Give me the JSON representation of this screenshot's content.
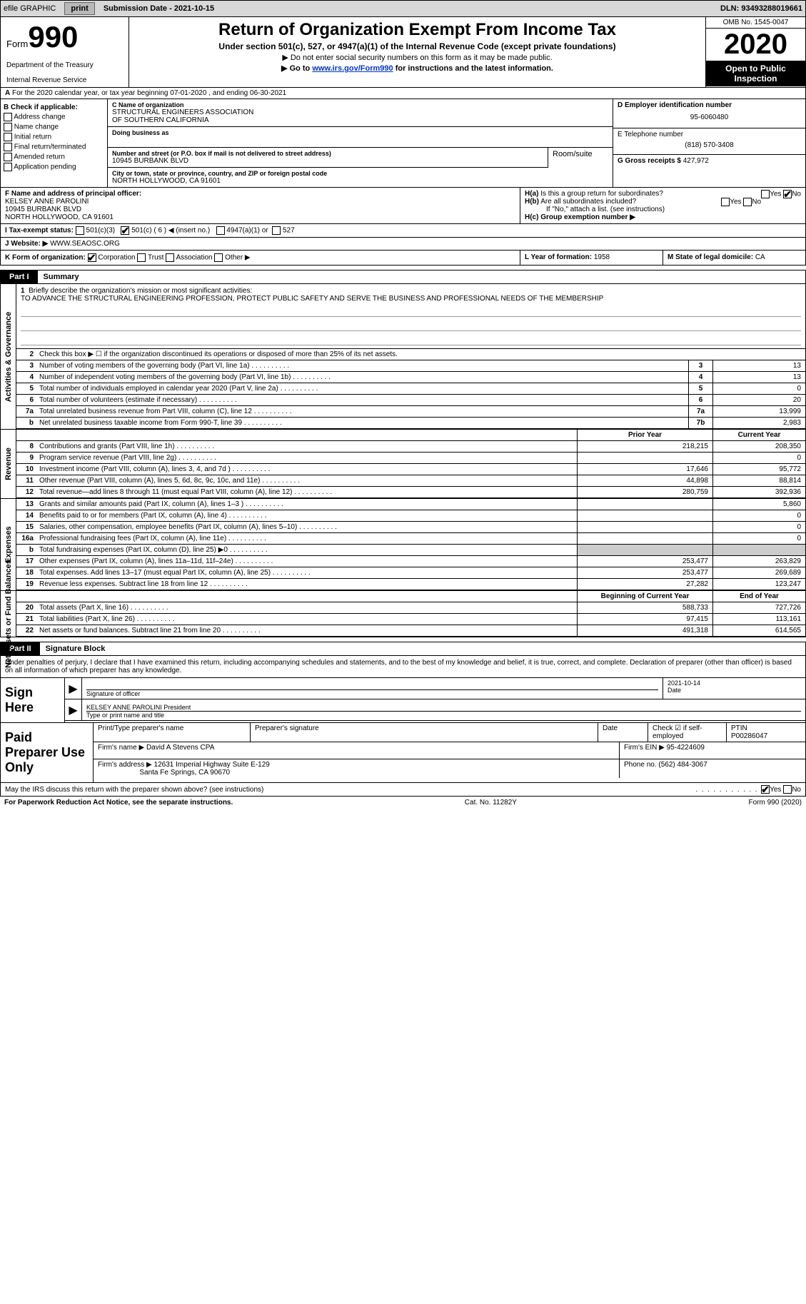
{
  "topbar": {
    "efile_label": "efile GRAPHIC",
    "print_btn": "print",
    "submission": "Submission Date - 2021-10-15",
    "dln": "DLN: 93493288019661"
  },
  "header": {
    "form_label": "Form",
    "form_number": "990",
    "dept1": "Department of the Treasury",
    "dept2": "Internal Revenue Service",
    "title": "Return of Organization Exempt From Income Tax",
    "sub": "Under section 501(c), 527, or 4947(a)(1) of the Internal Revenue Code (except private foundations)",
    "line1": "▶ Do not enter social security numbers on this form as it may be made public.",
    "line2_pre": "▶ Go to ",
    "line2_link": "www.irs.gov/Form990",
    "line2_post": " for instructions and the latest information.",
    "omb": "OMB No. 1545-0047",
    "year": "2020",
    "open": "Open to Public Inspection"
  },
  "line_a": "For the 2020 calendar year, or tax year beginning 07-01-2020    , and ending 06-30-2021",
  "section_b": {
    "b_title": "B Check if applicable:",
    "b_opts": [
      "Address change",
      "Name change",
      "Initial return",
      "Final return/terminated",
      "Amended return",
      "Application pending"
    ],
    "c_label": "C Name of organization",
    "c_name": "STRUCTURAL ENGINEERS ASSOCIATION\nOF SOUTHERN CALIFORNIA",
    "dba_label": "Doing business as",
    "addr_label": "Number and street (or P.O. box if mail is not delivered to street address)",
    "addr": "10945 BURBANK BLVD",
    "room_label": "Room/suite",
    "city_label": "City or town, state or province, country, and ZIP or foreign postal code",
    "city": "NORTH HOLLYWOOD, CA  91601",
    "d_label": "D Employer identification number",
    "d_val": "95-6060480",
    "e_label": "E Telephone number",
    "e_val": "(818) 570-3408",
    "g_label": "G Gross receipts $",
    "g_val": "427,972"
  },
  "row_fh": {
    "f_label": "F Name and address of principal officer:",
    "f_name": "KELSEY ANNE PAROLINI",
    "f_addr1": "10945 BURBANK BLVD",
    "f_addr2": "NORTH HOLLYWOOD, CA  91601",
    "ha_label": "H(a) Is this a group return for subordinates?",
    "ha_yes": "Yes",
    "ha_no": "No",
    "hb_label": "H(b) Are all subordinates included?",
    "hb_note": "If \"No,\" attach a list. (see instructions)",
    "hc_label": "H(c) Group exemption number ▶"
  },
  "tax_status": {
    "i_label": "I   Tax-exempt status:",
    "o1": "501(c)(3)",
    "o2": "501(c) ( 6 ) ◀ (insert no.)",
    "o3": "4947(a)(1) or",
    "o4": "527"
  },
  "website": {
    "j_label": "J   Website: ▶",
    "j_val": "WWW.SEAOSC.ORG"
  },
  "klm": {
    "k_label": "K Form of organization:",
    "k_opts": [
      "Corporation",
      "Trust",
      "Association",
      "Other ▶"
    ],
    "l_label": "L Year of formation:",
    "l_val": "1958",
    "m_label": "M State of legal domicile:",
    "m_val": "CA"
  },
  "part1": {
    "label": "Part I",
    "title": "Summary"
  },
  "governance": {
    "side": "Activities & Governance",
    "l1_label": "Briefly describe the organization's mission or most significant activities:",
    "l1_text": "TO ADVANCE THE STRUCTURAL ENGINEERING PROFESSION, PROTECT PUBLIC SAFETY AND SERVE THE BUSINESS AND PROFESSIONAL NEEDS OF THE MEMBERSHIP",
    "l2": "Check this box ▶ ☐ if the organization discontinued its operations or disposed of more than 25% of its net assets.",
    "rows": [
      {
        "n": "3",
        "desc": "Number of voting members of the governing body (Part VI, line 1a)",
        "box": "3",
        "val": "13"
      },
      {
        "n": "4",
        "desc": "Number of independent voting members of the governing body (Part VI, line 1b)",
        "box": "4",
        "val": "13"
      },
      {
        "n": "5",
        "desc": "Total number of individuals employed in calendar year 2020 (Part V, line 2a)",
        "box": "5",
        "val": "0"
      },
      {
        "n": "6",
        "desc": "Total number of volunteers (estimate if necessary)",
        "box": "6",
        "val": "20"
      },
      {
        "n": "7a",
        "desc": "Total unrelated business revenue from Part VIII, column (C), line 12",
        "box": "7a",
        "val": "13,999"
      },
      {
        "n": "b",
        "desc": "Net unrelated business taxable income from Form 990-T, line 39",
        "box": "7b",
        "val": "2,983"
      }
    ]
  },
  "two_col": {
    "prior": "Prior Year",
    "current": "Current Year",
    "begin": "Beginning of Current Year",
    "end": "End of Year"
  },
  "revenue": {
    "side": "Revenue",
    "rows": [
      {
        "n": "8",
        "desc": "Contributions and grants (Part VIII, line 1h)",
        "p": "218,215",
        "c": "208,350"
      },
      {
        "n": "9",
        "desc": "Program service revenue (Part VIII, line 2g)",
        "p": "",
        "c": "0"
      },
      {
        "n": "10",
        "desc": "Investment income (Part VIII, column (A), lines 3, 4, and 7d )",
        "p": "17,646",
        "c": "95,772"
      },
      {
        "n": "11",
        "desc": "Other revenue (Part VIII, column (A), lines 5, 6d, 8c, 9c, 10c, and 11e)",
        "p": "44,898",
        "c": "88,814"
      },
      {
        "n": "12",
        "desc": "Total revenue—add lines 8 through 11 (must equal Part VIII, column (A), line 12)",
        "p": "280,759",
        "c": "392,936"
      }
    ]
  },
  "expenses": {
    "side": "Expenses",
    "rows": [
      {
        "n": "13",
        "desc": "Grants and similar amounts paid (Part IX, column (A), lines 1–3 )",
        "p": "",
        "c": "5,860"
      },
      {
        "n": "14",
        "desc": "Benefits paid to or for members (Part IX, column (A), line 4)",
        "p": "",
        "c": "0"
      },
      {
        "n": "15",
        "desc": "Salaries, other compensation, employee benefits (Part IX, column (A), lines 5–10)",
        "p": "",
        "c": "0"
      },
      {
        "n": "16a",
        "desc": "Professional fundraising fees (Part IX, column (A), line 11e)",
        "p": "",
        "c": "0"
      },
      {
        "n": "b",
        "desc": "Total fundraising expenses (Part IX, column (D), line 25) ▶0",
        "p": "SHADED",
        "c": "SHADED"
      },
      {
        "n": "17",
        "desc": "Other expenses (Part IX, column (A), lines 11a–11d, 11f–24e)",
        "p": "253,477",
        "c": "263,829"
      },
      {
        "n": "18",
        "desc": "Total expenses. Add lines 13–17 (must equal Part IX, column (A), line 25)",
        "p": "253,477",
        "c": "269,689"
      },
      {
        "n": "19",
        "desc": "Revenue less expenses. Subtract line 18 from line 12",
        "p": "27,282",
        "c": "123,247"
      }
    ]
  },
  "netassets": {
    "side": "Net Assets or Fund Balances",
    "rows": [
      {
        "n": "20",
        "desc": "Total assets (Part X, line 16)",
        "p": "588,733",
        "c": "727,726"
      },
      {
        "n": "21",
        "desc": "Total liabilities (Part X, line 26)",
        "p": "97,415",
        "c": "113,161"
      },
      {
        "n": "22",
        "desc": "Net assets or fund balances. Subtract line 21 from line 20",
        "p": "491,318",
        "c": "614,565"
      }
    ]
  },
  "part2": {
    "label": "Part II",
    "title": "Signature Block"
  },
  "perjury": "Under penalties of perjury, I declare that I have examined this return, including accompanying schedules and statements, and to the best of my knowledge and belief, it is true, correct, and complete. Declaration of preparer (other than officer) is based on all information of which preparer has any knowledge.",
  "sign": {
    "label": "Sign Here",
    "sig_label": "Signature of officer",
    "date_val": "2021-10-14",
    "date_label": "Date",
    "name": "KELSEY ANNE PAROLINI  President",
    "name_label": "Type or print name and title"
  },
  "preparer": {
    "label": "Paid Preparer Use Only",
    "h_name": "Print/Type preparer's name",
    "h_sig": "Preparer's signature",
    "h_date": "Date",
    "h_check": "Check ☑ if self-employed",
    "h_ptin": "PTIN",
    "ptin_val": "P00286047",
    "firm_label": "Firm's name   ▶",
    "firm_val": "David A Stevens CPA",
    "ein_label": "Firm's EIN ▶",
    "ein_val": "95-4224609",
    "addr_label": "Firm's address ▶",
    "addr_val": "12631 Imperial Highway Suite E-129",
    "addr_val2": "Santa Fe Springs, CA  90670",
    "phone_label": "Phone no.",
    "phone_val": "(562) 484-3067"
  },
  "discuss": {
    "text": "May the IRS discuss this return with the preparer shown above? (see instructions)",
    "yes": "Yes",
    "no": "No"
  },
  "footer": {
    "left": "For Paperwork Reduction Act Notice, see the separate instructions.",
    "mid": "Cat. No. 11282Y",
    "right": "Form 990 (2020)"
  }
}
